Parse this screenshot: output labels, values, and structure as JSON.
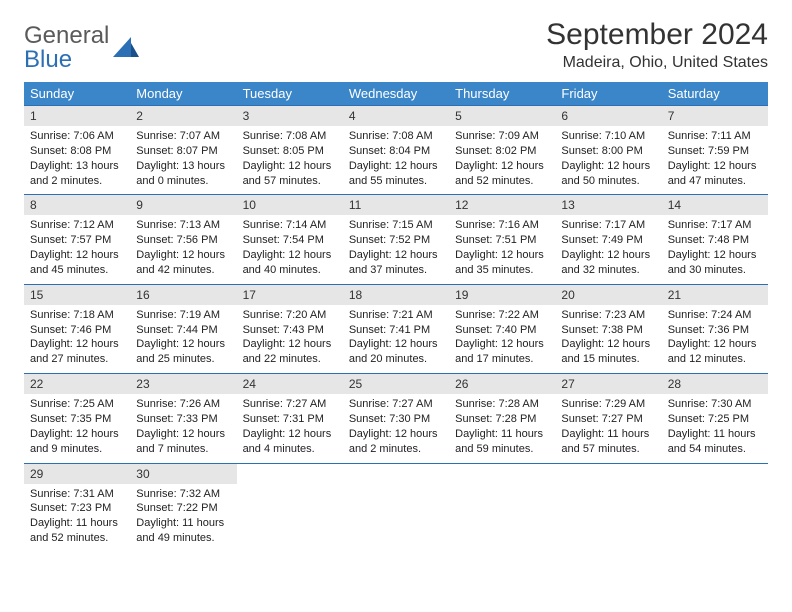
{
  "logo": {
    "general": "General",
    "blue": "Blue"
  },
  "title": "September 2024",
  "location": "Madeira, Ohio, United States",
  "colors": {
    "header_bg": "#3a86c8",
    "header_text": "#ffffff",
    "daynum_bg": "#e6e6e6",
    "row_border": "#2c6fb5",
    "logo_gray": "#5a5a5a",
    "logo_blue": "#2c6fb5"
  },
  "weekdays": [
    "Sunday",
    "Monday",
    "Tuesday",
    "Wednesday",
    "Thursday",
    "Friday",
    "Saturday"
  ],
  "weeks": [
    [
      {
        "n": "1",
        "sr": "Sunrise: 7:06 AM",
        "ss": "Sunset: 8:08 PM",
        "dl": "Daylight: 13 hours and 2 minutes."
      },
      {
        "n": "2",
        "sr": "Sunrise: 7:07 AM",
        "ss": "Sunset: 8:07 PM",
        "dl": "Daylight: 13 hours and 0 minutes."
      },
      {
        "n": "3",
        "sr": "Sunrise: 7:08 AM",
        "ss": "Sunset: 8:05 PM",
        "dl": "Daylight: 12 hours and 57 minutes."
      },
      {
        "n": "4",
        "sr": "Sunrise: 7:08 AM",
        "ss": "Sunset: 8:04 PM",
        "dl": "Daylight: 12 hours and 55 minutes."
      },
      {
        "n": "5",
        "sr": "Sunrise: 7:09 AM",
        "ss": "Sunset: 8:02 PM",
        "dl": "Daylight: 12 hours and 52 minutes."
      },
      {
        "n": "6",
        "sr": "Sunrise: 7:10 AM",
        "ss": "Sunset: 8:00 PM",
        "dl": "Daylight: 12 hours and 50 minutes."
      },
      {
        "n": "7",
        "sr": "Sunrise: 7:11 AM",
        "ss": "Sunset: 7:59 PM",
        "dl": "Daylight: 12 hours and 47 minutes."
      }
    ],
    [
      {
        "n": "8",
        "sr": "Sunrise: 7:12 AM",
        "ss": "Sunset: 7:57 PM",
        "dl": "Daylight: 12 hours and 45 minutes."
      },
      {
        "n": "9",
        "sr": "Sunrise: 7:13 AM",
        "ss": "Sunset: 7:56 PM",
        "dl": "Daylight: 12 hours and 42 minutes."
      },
      {
        "n": "10",
        "sr": "Sunrise: 7:14 AM",
        "ss": "Sunset: 7:54 PM",
        "dl": "Daylight: 12 hours and 40 minutes."
      },
      {
        "n": "11",
        "sr": "Sunrise: 7:15 AM",
        "ss": "Sunset: 7:52 PM",
        "dl": "Daylight: 12 hours and 37 minutes."
      },
      {
        "n": "12",
        "sr": "Sunrise: 7:16 AM",
        "ss": "Sunset: 7:51 PM",
        "dl": "Daylight: 12 hours and 35 minutes."
      },
      {
        "n": "13",
        "sr": "Sunrise: 7:17 AM",
        "ss": "Sunset: 7:49 PM",
        "dl": "Daylight: 12 hours and 32 minutes."
      },
      {
        "n": "14",
        "sr": "Sunrise: 7:17 AM",
        "ss": "Sunset: 7:48 PM",
        "dl": "Daylight: 12 hours and 30 minutes."
      }
    ],
    [
      {
        "n": "15",
        "sr": "Sunrise: 7:18 AM",
        "ss": "Sunset: 7:46 PM",
        "dl": "Daylight: 12 hours and 27 minutes."
      },
      {
        "n": "16",
        "sr": "Sunrise: 7:19 AM",
        "ss": "Sunset: 7:44 PM",
        "dl": "Daylight: 12 hours and 25 minutes."
      },
      {
        "n": "17",
        "sr": "Sunrise: 7:20 AM",
        "ss": "Sunset: 7:43 PM",
        "dl": "Daylight: 12 hours and 22 minutes."
      },
      {
        "n": "18",
        "sr": "Sunrise: 7:21 AM",
        "ss": "Sunset: 7:41 PM",
        "dl": "Daylight: 12 hours and 20 minutes."
      },
      {
        "n": "19",
        "sr": "Sunrise: 7:22 AM",
        "ss": "Sunset: 7:40 PM",
        "dl": "Daylight: 12 hours and 17 minutes."
      },
      {
        "n": "20",
        "sr": "Sunrise: 7:23 AM",
        "ss": "Sunset: 7:38 PM",
        "dl": "Daylight: 12 hours and 15 minutes."
      },
      {
        "n": "21",
        "sr": "Sunrise: 7:24 AM",
        "ss": "Sunset: 7:36 PM",
        "dl": "Daylight: 12 hours and 12 minutes."
      }
    ],
    [
      {
        "n": "22",
        "sr": "Sunrise: 7:25 AM",
        "ss": "Sunset: 7:35 PM",
        "dl": "Daylight: 12 hours and 9 minutes."
      },
      {
        "n": "23",
        "sr": "Sunrise: 7:26 AM",
        "ss": "Sunset: 7:33 PM",
        "dl": "Daylight: 12 hours and 7 minutes."
      },
      {
        "n": "24",
        "sr": "Sunrise: 7:27 AM",
        "ss": "Sunset: 7:31 PM",
        "dl": "Daylight: 12 hours and 4 minutes."
      },
      {
        "n": "25",
        "sr": "Sunrise: 7:27 AM",
        "ss": "Sunset: 7:30 PM",
        "dl": "Daylight: 12 hours and 2 minutes."
      },
      {
        "n": "26",
        "sr": "Sunrise: 7:28 AM",
        "ss": "Sunset: 7:28 PM",
        "dl": "Daylight: 11 hours and 59 minutes."
      },
      {
        "n": "27",
        "sr": "Sunrise: 7:29 AM",
        "ss": "Sunset: 7:27 PM",
        "dl": "Daylight: 11 hours and 57 minutes."
      },
      {
        "n": "28",
        "sr": "Sunrise: 7:30 AM",
        "ss": "Sunset: 7:25 PM",
        "dl": "Daylight: 11 hours and 54 minutes."
      }
    ],
    [
      {
        "n": "29",
        "sr": "Sunrise: 7:31 AM",
        "ss": "Sunset: 7:23 PM",
        "dl": "Daylight: 11 hours and 52 minutes."
      },
      {
        "n": "30",
        "sr": "Sunrise: 7:32 AM",
        "ss": "Sunset: 7:22 PM",
        "dl": "Daylight: 11 hours and 49 minutes."
      },
      null,
      null,
      null,
      null,
      null
    ]
  ]
}
